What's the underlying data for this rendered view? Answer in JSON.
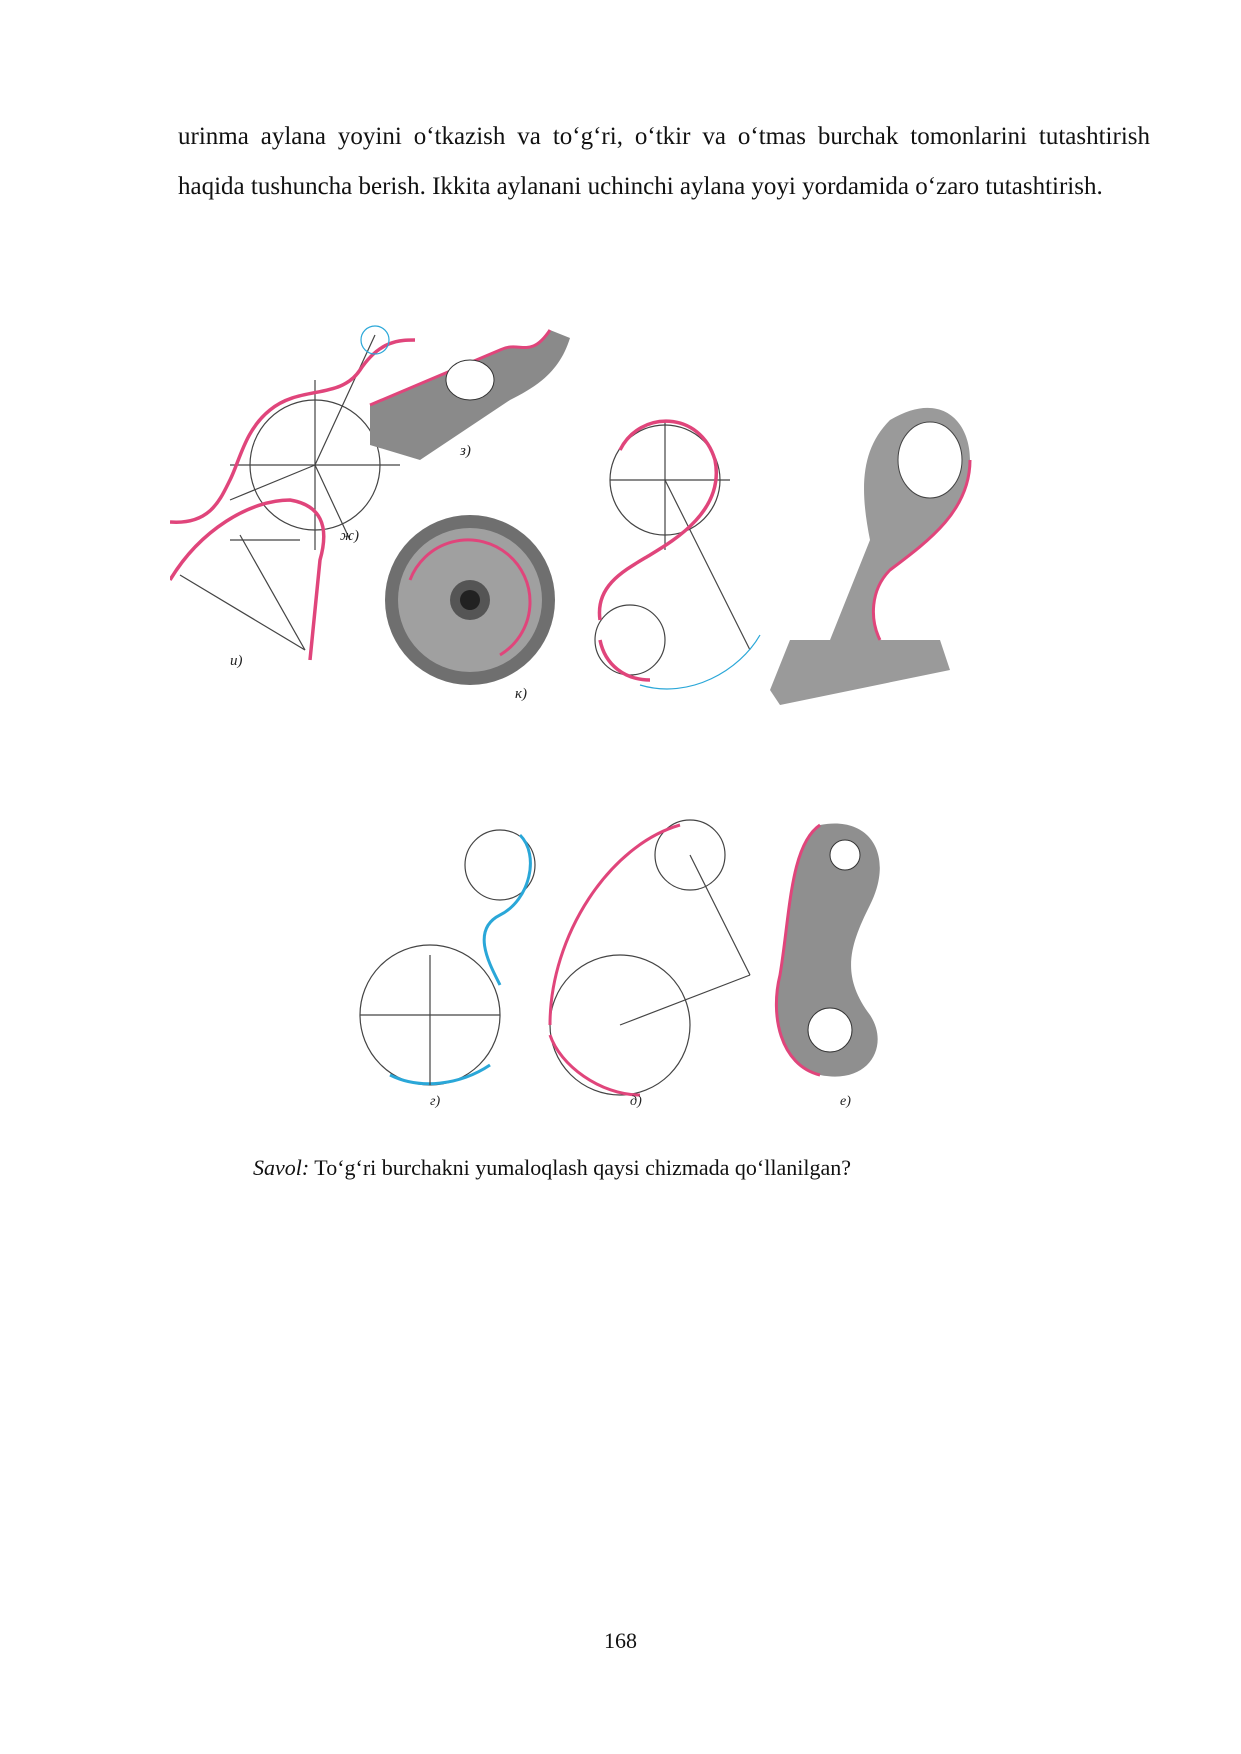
{
  "text": {
    "paragraph": "urinma aylana yoyini o‘tkazish va to‘g‘ri, o‘tkir va o‘tmas burchak tomonlarini tutashtirish haqida tushuncha berish. Ikkita aylanani uchinchi aylana yoyi yordamida o‘zaro tutashtirish.",
    "question_label": "Savol:",
    "question_text": " To‘g‘ri burchakni yumaloqlash qaysi chizmada qo‘llanilgan?",
    "page_number": "168"
  },
  "figures": {
    "zh": "ж)",
    "z": "з)",
    "i": "и)",
    "k": "к)",
    "g": "г)",
    "d": "д)",
    "e": "е)"
  },
  "colors": {
    "pink": "#e0457b",
    "blue": "#2aa7d8",
    "line": "#444444"
  }
}
